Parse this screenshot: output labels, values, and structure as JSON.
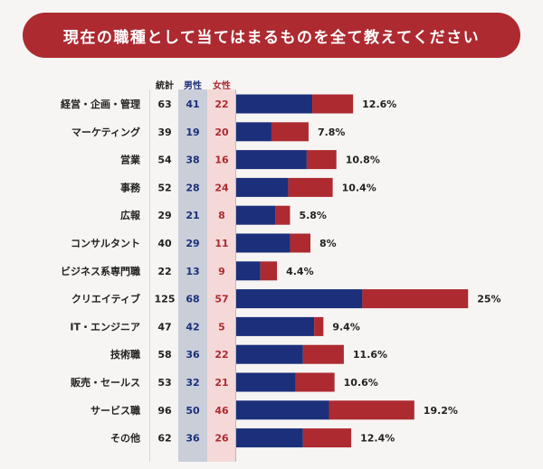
{
  "title": "現在の職種として当てはまるものを全て教えてください",
  "headers": {
    "total": "統計",
    "male": "男性",
    "female": "女性"
  },
  "colors": {
    "male": "#1c2f7a",
    "female": "#ad2a31",
    "title_bg": "#ad2a31"
  },
  "chart_data": {
    "type": "bar",
    "stacked": true,
    "orientation": "horizontal",
    "categories": [
      "経営・企画・管理",
      "マーケティング",
      "営業",
      "事務",
      "広報",
      "コンサルタント",
      "ビジネス系専門職",
      "クリエイティブ",
      "IT・エンジニア",
      "技術職",
      "販売・セールス",
      "サービス職",
      "その他"
    ],
    "totals": [
      63,
      39,
      54,
      52,
      29,
      40,
      22,
      125,
      47,
      58,
      53,
      96,
      62
    ],
    "series": [
      {
        "name": "男性",
        "values": [
          41,
          19,
          38,
          28,
          21,
          29,
          13,
          68,
          42,
          36,
          32,
          50,
          36
        ]
      },
      {
        "name": "女性",
        "values": [
          22,
          20,
          16,
          24,
          8,
          11,
          9,
          57,
          5,
          22,
          21,
          46,
          26
        ]
      }
    ],
    "percent_labels": [
      "12.6%",
      "7.8%",
      "10.8%",
      "10.4%",
      "5.8%",
      "8%",
      "4.4%",
      "25%",
      "9.4%",
      "11.6%",
      "10.6%",
      "19.2%",
      "12.4%"
    ]
  }
}
